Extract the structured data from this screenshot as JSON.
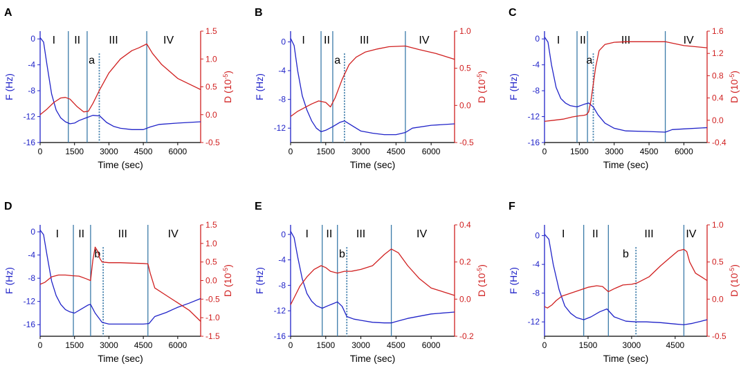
{
  "chart_data": [
    {
      "panel": "A",
      "type": "line",
      "xlabel": "Time (sec)",
      "ylabel_left": "F (Hz)",
      "ylabel_right": "D (10",
      "ylabel_right_exp": "-5",
      "ylabel_right_close": ")",
      "xlim": [
        0,
        7000
      ],
      "xticks": [
        0,
        1500,
        3000,
        4500,
        6000
      ],
      "ylim_left": [
        -16,
        1.2
      ],
      "yticks_left": [
        0,
        -4,
        -8,
        -12,
        -16
      ],
      "ylim_right": [
        -0.5,
        1.5
      ],
      "yticks_right": [
        "-0.5",
        "0.0",
        "0.5",
        "1.0",
        "1.5"
      ],
      "regions": [
        "I",
        "II",
        "III",
        "IV"
      ],
      "region_x": [
        600,
        1620,
        3200,
        5600
      ],
      "solid_lines": [
        1230,
        2050,
        4650
      ],
      "dashed_line": 2580,
      "marker": "a",
      "marker_x": 2250,
      "series": [
        {
          "name": "F",
          "color": "#1f22c8",
          "axis": "left",
          "x": [
            0,
            150,
            300,
            500,
            700,
            900,
            1100,
            1300,
            1500,
            1700,
            2000,
            2300,
            2600,
            2900,
            3200,
            3500,
            4000,
            4500,
            4800,
            5200,
            6000,
            7000
          ],
          "y": [
            0.2,
            -0.5,
            -4,
            -8.5,
            -11,
            -12.2,
            -12.8,
            -13.1,
            -13,
            -12.6,
            -12.2,
            -11.8,
            -11.9,
            -12.9,
            -13.5,
            -13.8,
            -14,
            -14,
            -13.6,
            -13.2,
            -13,
            -12.8
          ]
        },
        {
          "name": "D",
          "color": "#d01f1f",
          "axis": "right",
          "x": [
            0,
            300,
            600,
            900,
            1100,
            1300,
            1600,
            1900,
            2100,
            2300,
            2600,
            3000,
            3500,
            4000,
            4300,
            4650,
            4900,
            5300,
            6000,
            7000
          ],
          "y": [
            0,
            0.1,
            0.22,
            0.3,
            0.31,
            0.28,
            0.15,
            0.05,
            0.06,
            0.2,
            0.45,
            0.75,
            1.0,
            1.15,
            1.2,
            1.27,
            1.1,
            0.9,
            0.65,
            0.45
          ]
        }
      ]
    },
    {
      "panel": "B",
      "type": "line",
      "xlabel": "Time (sec)",
      "ylabel_left": "F (Hz)",
      "ylabel_right": "D (10",
      "ylabel_right_exp": "-5",
      "ylabel_right_close": ")",
      "xlim": [
        0,
        7000
      ],
      "xticks": [
        0,
        1500,
        3000,
        4500,
        6000
      ],
      "ylim_left": [
        -14,
        1.5
      ],
      "yticks_left": [
        0,
        -4,
        -8,
        -12
      ],
      "ylim_right": [
        -0.5,
        1.0
      ],
      "yticks_right": [
        "-0.5",
        "0.0",
        "0.5",
        "1.0"
      ],
      "regions": [
        "I",
        "II",
        "III",
        "IV"
      ],
      "region_x": [
        550,
        1550,
        3150,
        5700
      ],
      "solid_lines": [
        1300,
        1800,
        4900
      ],
      "dashed_line": 2300,
      "marker": "a",
      "marker_x": 2000,
      "series": [
        {
          "name": "F",
          "color": "#1f22c8",
          "axis": "left",
          "x": [
            0,
            150,
            300,
            500,
            700,
            900,
            1100,
            1300,
            1500,
            1800,
            2100,
            2300,
            2600,
            3000,
            3500,
            4000,
            4500,
            4900,
            5200,
            6000,
            7000
          ],
          "y": [
            0.5,
            -0.5,
            -4,
            -7.5,
            -9.5,
            -11,
            -12,
            -12.5,
            -12.3,
            -11.8,
            -11.2,
            -11,
            -11.6,
            -12.4,
            -12.7,
            -12.9,
            -12.9,
            -12.6,
            -12,
            -11.6,
            -11.4
          ]
        },
        {
          "name": "D",
          "color": "#d01f1f",
          "axis": "right",
          "x": [
            0,
            300,
            600,
            900,
            1200,
            1500,
            1700,
            1900,
            2200,
            2500,
            2800,
            3200,
            3700,
            4200,
            4900,
            5500,
            6200,
            7000
          ],
          "y": [
            -0.15,
            -0.08,
            -0.03,
            0.02,
            0.06,
            0.04,
            -0.02,
            0.1,
            0.35,
            0.55,
            0.65,
            0.72,
            0.76,
            0.79,
            0.8,
            0.75,
            0.7,
            0.62
          ]
        }
      ]
    },
    {
      "panel": "C",
      "type": "line",
      "xlabel": "Time (sec)",
      "ylabel_left": "F (Hz)",
      "ylabel_right": "D (10",
      "ylabel_right_exp": "-5",
      "ylabel_right_close": ")",
      "xlim": [
        0,
        7000
      ],
      "xticks": [
        0,
        1500,
        3000,
        4500,
        6000
      ],
      "ylim_left": [
        -16,
        1.2
      ],
      "yticks_left": [
        0,
        -4,
        -8,
        -12,
        -16
      ],
      "ylim_right": [
        -0.4,
        1.6
      ],
      "yticks_right": [
        "-0.4",
        "0.0",
        "0.4",
        "0.8",
        "1.2",
        "1.6"
      ],
      "regions": [
        "I",
        "II",
        "III",
        "IV"
      ],
      "region_x": [
        600,
        1650,
        3500,
        6200
      ],
      "solid_lines": [
        1400,
        1850,
        5200
      ],
      "dashed_line": 2100,
      "marker": "a",
      "marker_x": 1930,
      "series": [
        {
          "name": "F",
          "color": "#1f22c8",
          "axis": "left",
          "x": [
            0,
            150,
            300,
            500,
            700,
            900,
            1100,
            1400,
            1700,
            1900,
            2100,
            2300,
            2600,
            3000,
            3500,
            4500,
            5200,
            5500,
            6000,
            7000
          ],
          "y": [
            0.3,
            -0.5,
            -4,
            -7.5,
            -9.2,
            -9.9,
            -10.3,
            -10.5,
            -10.1,
            -9.9,
            -10.5,
            -11.7,
            -13,
            -13.8,
            -14.2,
            -14.3,
            -14.4,
            -14,
            -13.9,
            -13.7
          ]
        },
        {
          "name": "D",
          "color": "#d01f1f",
          "axis": "right",
          "x": [
            0,
            400,
            800,
            1200,
            1500,
            1700,
            1800,
            1900,
            2000,
            2100,
            2200,
            2350,
            2600,
            3000,
            3500,
            4500,
            5200,
            6000,
            7000
          ],
          "y": [
            -0.02,
            0.0,
            0.02,
            0.06,
            0.08,
            0.09,
            0.1,
            0.15,
            0.35,
            0.65,
            0.95,
            1.25,
            1.36,
            1.4,
            1.41,
            1.41,
            1.41,
            1.34,
            1.3
          ]
        }
      ]
    },
    {
      "panel": "D",
      "type": "line",
      "xlabel": "Time (sec)",
      "ylabel_left": "F (Hz)",
      "ylabel_right": "D (10",
      "ylabel_right_exp": "-5",
      "ylabel_right_close": ")",
      "xlim": [
        0,
        7000
      ],
      "xticks": [
        0,
        1500,
        3000,
        4500,
        6000
      ],
      "ylim_left": [
        -18,
        1.2
      ],
      "yticks_left": [
        0,
        -4,
        -8,
        -12,
        -16
      ],
      "ylim_right": [
        -1.5,
        1.5
      ],
      "yticks_right": [
        "-1.5",
        "-1.0",
        "-0.5",
        "0.0",
        "0.5",
        "1.0",
        "1.5"
      ],
      "regions": [
        "I",
        "II",
        "III",
        "IV"
      ],
      "region_x": [
        750,
        1800,
        3600,
        5800
      ],
      "solid_lines": [
        1450,
        2200,
        4700
      ],
      "dashed_line": 2750,
      "marker": "b",
      "marker_x": 2500,
      "series": [
        {
          "name": "F",
          "color": "#1f22c8",
          "axis": "left",
          "x": [
            0,
            150,
            300,
            500,
            700,
            900,
            1100,
            1300,
            1500,
            1800,
            2100,
            2200,
            2400,
            2700,
            3000,
            3500,
            4500,
            4750,
            5000,
            5500,
            6000,
            6500,
            7000
          ],
          "y": [
            0.3,
            -0.5,
            -4,
            -8.5,
            -11,
            -12.5,
            -13.4,
            -13.8,
            -14,
            -13.3,
            -12.6,
            -12.5,
            -14,
            -15.6,
            -15.9,
            -15.9,
            -15.9,
            -15.8,
            -14.6,
            -13.9,
            -13,
            -12.3,
            -11.5
          ]
        },
        {
          "name": "D",
          "color": "#d01f1f",
          "axis": "right",
          "x": [
            0,
            200,
            500,
            800,
            1100,
            1400,
            1700,
            2000,
            2200,
            2300,
            2400,
            2500,
            2600,
            2700,
            3000,
            3500,
            4000,
            4500,
            4700,
            4800,
            5000,
            5500,
            6000,
            6500,
            7000
          ],
          "y": [
            -0.1,
            -0.05,
            0.1,
            0.15,
            0.15,
            0.13,
            0.12,
            0.05,
            0.0,
            0.55,
            0.9,
            0.8,
            0.6,
            0.5,
            0.48,
            0.48,
            0.47,
            0.46,
            0.45,
            0.2,
            -0.2,
            -0.4,
            -0.6,
            -0.8,
            -1.1
          ]
        }
      ]
    },
    {
      "panel": "E",
      "type": "line",
      "xlabel": "Time (sec)",
      "ylabel_left": "F (Hz)",
      "ylabel_right": "D (10",
      "ylabel_right_exp": "-5",
      "ylabel_right_close": ")",
      "xlim": [
        0,
        7000
      ],
      "xticks": [
        0,
        1500,
        3000,
        4500,
        6000
      ],
      "ylim_left": [
        -16,
        1.5
      ],
      "yticks_left": [
        0,
        -4,
        -8,
        -12,
        -16
      ],
      "ylim_right": [
        -0.2,
        0.4
      ],
      "yticks_right": [
        "-0.2",
        "0.0",
        "0.2",
        "0.4"
      ],
      "regions": [
        "I",
        "II",
        "III",
        "IV"
      ],
      "region_x": [
        700,
        1650,
        3000,
        5600
      ],
      "solid_lines": [
        1350,
        2000,
        4300
      ],
      "dashed_line": 2400,
      "marker": "b",
      "marker_x": 2200,
      "series": [
        {
          "name": "F",
          "color": "#1f22c8",
          "axis": "left",
          "x": [
            0,
            150,
            300,
            500,
            700,
            900,
            1100,
            1350,
            1600,
            1800,
            2000,
            2200,
            2400,
            2700,
            3000,
            3500,
            4000,
            4300,
            4500,
            5000,
            6000,
            7000
          ],
          "y": [
            0.5,
            -0.5,
            -3.5,
            -7,
            -9.3,
            -10.5,
            -11.2,
            -11.6,
            -11.2,
            -10.9,
            -10.6,
            -11.3,
            -12.9,
            -13.3,
            -13.5,
            -13.8,
            -13.9,
            -13.9,
            -13.7,
            -13.2,
            -12.5,
            -12.2
          ]
        },
        {
          "name": "D",
          "color": "#d01f1f",
          "axis": "right",
          "x": [
            0,
            200,
            400,
            700,
            1000,
            1300,
            1500,
            1700,
            2000,
            2300,
            2600,
            3000,
            3500,
            4000,
            4300,
            4600,
            5000,
            5500,
            6000,
            6500,
            7000
          ],
          "y": [
            -0.03,
            0.02,
            0.07,
            0.12,
            0.16,
            0.18,
            0.17,
            0.15,
            0.14,
            0.15,
            0.15,
            0.16,
            0.18,
            0.24,
            0.27,
            0.25,
            0.18,
            0.11,
            0.06,
            0.04,
            0.02
          ]
        }
      ]
    },
    {
      "panel": "F",
      "type": "line",
      "xlabel": "Time (sec)",
      "ylabel_left": "F (Hz)",
      "ylabel_right": "D (10",
      "ylabel_right_exp": "-5",
      "ylabel_right_close": ")",
      "xlim": [
        0,
        5600
      ],
      "xticks": [
        0,
        1500,
        3000,
        4500
      ],
      "ylim_left": [
        -14,
        1.5
      ],
      "yticks_left": [
        0,
        -4,
        -8,
        -12
      ],
      "ylim_right": [
        -0.5,
        1.0
      ],
      "yticks_right": [
        "-0.5",
        "0.0",
        "0.5",
        "1.0"
      ],
      "regions": [
        "I",
        "II",
        "III",
        "IV"
      ],
      "region_x": [
        650,
        1750,
        3600,
        5050
      ],
      "solid_lines": [
        1350,
        2200,
        4800
      ],
      "dashed_line": 3150,
      "marker": "b",
      "marker_x": 2800,
      "series": [
        {
          "name": "F",
          "color": "#1f22c8",
          "axis": "left",
          "x": [
            0,
            150,
            300,
            500,
            700,
            900,
            1100,
            1350,
            1600,
            1900,
            2150,
            2400,
            2800,
            3150,
            3500,
            4000,
            4500,
            4800,
            5100,
            5400,
            5600
          ],
          "y": [
            0.2,
            -0.5,
            -4,
            -7.5,
            -9.8,
            -10.8,
            -11.4,
            -11.7,
            -11.3,
            -10.6,
            -10.2,
            -11.3,
            -11.9,
            -12,
            -12,
            -12.1,
            -12.3,
            -12.4,
            -12.2,
            -11.9,
            -11.7
          ]
        },
        {
          "name": "D",
          "color": "#d01f1f",
          "axis": "right",
          "x": [
            0,
            100,
            250,
            400,
            600,
            900,
            1200,
            1500,
            1800,
            2000,
            2200,
            2400,
            2700,
            3000,
            3200,
            3600,
            4000,
            4300,
            4600,
            4800,
            4900,
            5000,
            5200,
            5400,
            5600
          ],
          "y": [
            -0.1,
            -0.12,
            -0.08,
            -0.02,
            0.04,
            0.08,
            0.12,
            0.16,
            0.18,
            0.17,
            0.1,
            0.14,
            0.19,
            0.2,
            0.22,
            0.3,
            0.45,
            0.55,
            0.65,
            0.67,
            0.64,
            0.5,
            0.35,
            0.3,
            0.25
          ]
        }
      ]
    }
  ]
}
